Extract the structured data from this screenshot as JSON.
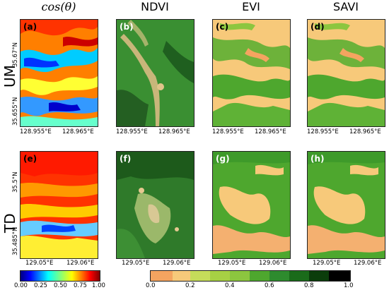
{
  "column_headers": [
    "cos(θ)",
    "NDVI",
    "EVI",
    "SAVI"
  ],
  "rows": [
    {
      "label": "UM",
      "panel_labels": [
        "(a)",
        "(b)",
        "(c)",
        "(d)"
      ],
      "x_ticks": [
        "128.955°E",
        "128.965°E"
      ],
      "y_ticks": [
        "35.67°N",
        "35.655°N"
      ]
    },
    {
      "label": "TD",
      "panel_labels": [
        "(e)",
        "(f)",
        "(g)",
        "(h)"
      ],
      "x_ticks": [
        "129.05°E",
        "129.06°E"
      ],
      "y_ticks": [
        "35.5°N",
        "35.485°N"
      ]
    }
  ],
  "colorbars": {
    "cos": {
      "ticks": [
        "0.00",
        "0.25",
        "0.50",
        "0.75",
        "1.00"
      ]
    },
    "veg": {
      "ticks": [
        "0.0",
        "0.2",
        "0.4",
        "0.6",
        "0.8",
        "1.0"
      ]
    }
  },
  "colors": {
    "jet": [
      "#00007f",
      "#0000ff",
      "#007fff",
      "#00ffff",
      "#7fff7f",
      "#ffff00",
      "#ff7f00",
      "#ff0000",
      "#7f0000"
    ],
    "veg": [
      "#f4a460",
      "#f7c97a",
      "#c5dc5a",
      "#8cc63f",
      "#4ea72e",
      "#2e8b2e",
      "#1a6b1a",
      "#0b3d0b",
      "#000000"
    ]
  }
}
